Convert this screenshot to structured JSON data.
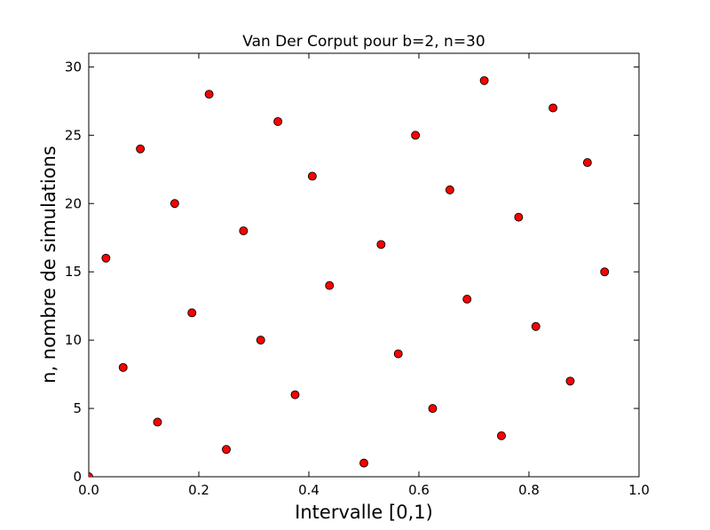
{
  "chart_data": {
    "type": "scatter",
    "title": "Van Der Corput pour b=2, n=30",
    "xlabel": "Intervalle [0,1)",
    "ylabel": "n, nombre de simulations",
    "xlim": [
      0,
      1
    ],
    "ylim": [
      0,
      31
    ],
    "xticks": [
      0.0,
      0.2,
      0.4,
      0.6,
      0.8,
      1.0
    ],
    "xtick_labels": [
      "0.0",
      "0.2",
      "0.4",
      "0.6",
      "0.8",
      "1.0"
    ],
    "yticks": [
      0,
      5,
      10,
      15,
      20,
      25,
      30
    ],
    "ytick_labels": [
      "0",
      "5",
      "10",
      "15",
      "20",
      "25",
      "30"
    ],
    "grid": false,
    "marker_color": "#ff0000",
    "marker_edge_color": "#000000",
    "series": [
      {
        "points": [
          {
            "x": 0.0,
            "y": 0
          },
          {
            "x": 0.5,
            "y": 1
          },
          {
            "x": 0.25,
            "y": 2
          },
          {
            "x": 0.75,
            "y": 3
          },
          {
            "x": 0.125,
            "y": 4
          },
          {
            "x": 0.625,
            "y": 5
          },
          {
            "x": 0.375,
            "y": 6
          },
          {
            "x": 0.875,
            "y": 7
          },
          {
            "x": 0.0625,
            "y": 8
          },
          {
            "x": 0.5625,
            "y": 9
          },
          {
            "x": 0.3125,
            "y": 10
          },
          {
            "x": 0.8125,
            "y": 11
          },
          {
            "x": 0.1875,
            "y": 12
          },
          {
            "x": 0.6875,
            "y": 13
          },
          {
            "x": 0.4375,
            "y": 14
          },
          {
            "x": 0.9375,
            "y": 15
          },
          {
            "x": 0.03125,
            "y": 16
          },
          {
            "x": 0.53125,
            "y": 17
          },
          {
            "x": 0.28125,
            "y": 18
          },
          {
            "x": 0.78125,
            "y": 19
          },
          {
            "x": 0.15625,
            "y": 20
          },
          {
            "x": 0.65625,
            "y": 21
          },
          {
            "x": 0.40625,
            "y": 22
          },
          {
            "x": 0.90625,
            "y": 23
          },
          {
            "x": 0.09375,
            "y": 24
          },
          {
            "x": 0.59375,
            "y": 25
          },
          {
            "x": 0.34375,
            "y": 26
          },
          {
            "x": 0.84375,
            "y": 27
          },
          {
            "x": 0.21875,
            "y": 28
          },
          {
            "x": 0.71875,
            "y": 29
          }
        ]
      }
    ]
  }
}
